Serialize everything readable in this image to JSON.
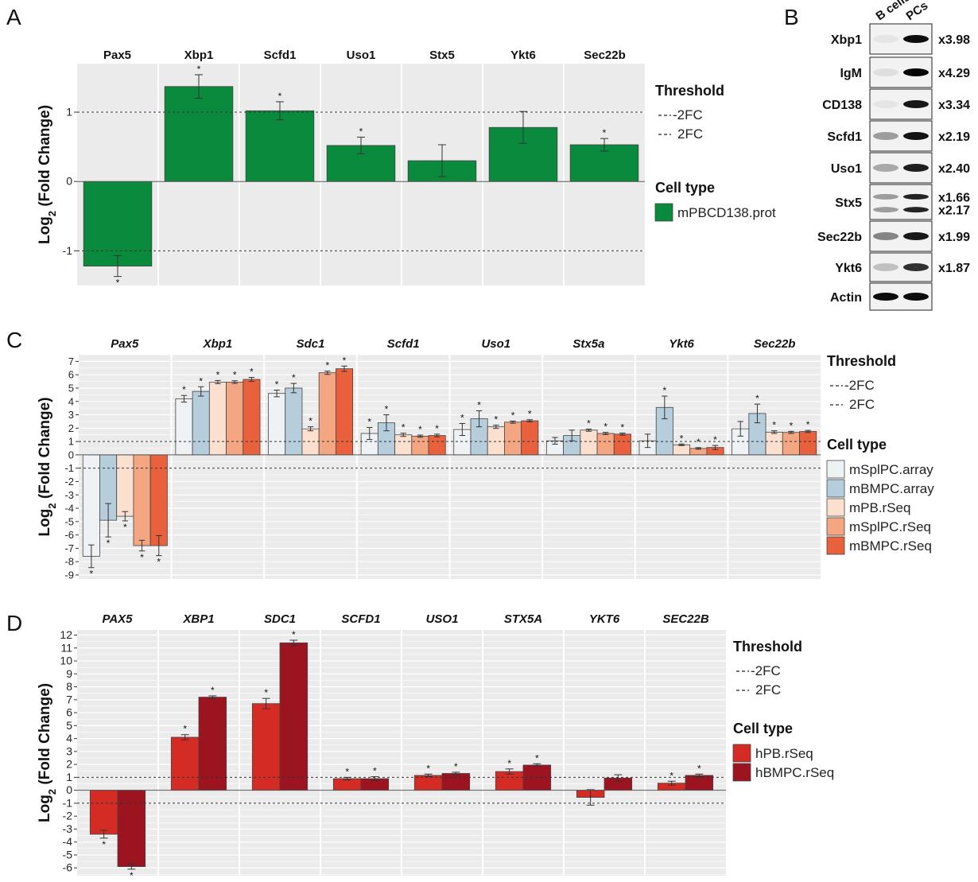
{
  "panels": {
    "a": "A",
    "b": "B",
    "c": "C",
    "d": "D"
  },
  "threshold": {
    "title": "Threshold",
    "lines": [
      "-2FC",
      "2FC"
    ]
  },
  "celltype_title": "Cell type",
  "ylabel_prefix": "Log",
  "ylabel_sub": "2",
  "ylabel_suffix": " (Fold Change)",
  "blot": {
    "columns": [
      "B cells",
      "PCs"
    ],
    "rows": [
      {
        "label": "Xbp1",
        "ratios": [
          "x3.98"
        ]
      },
      {
        "label": "IgM",
        "ratios": [
          "x4.29"
        ]
      },
      {
        "label": "CD138",
        "ratios": [
          "x3.34"
        ]
      },
      {
        "label": "Scfd1",
        "ratios": [
          "x2.19"
        ]
      },
      {
        "label": "Uso1",
        "ratios": [
          "x2.40"
        ]
      },
      {
        "label": "Stx5",
        "ratios": [
          "x1.66",
          "x2.17"
        ]
      },
      {
        "label": "Sec22b",
        "ratios": [
          "x1.99"
        ]
      },
      {
        "label": "Ykt6",
        "ratios": [
          "x1.87"
        ]
      },
      {
        "label": "Actin",
        "ratios": []
      }
    ]
  },
  "colors": {
    "panel_bg": "#ebebeb",
    "grid": "#ffffff",
    "threshold_line": "#333333"
  },
  "chart_data": [
    {
      "id": "A",
      "type": "bar",
      "categories": [
        "Pax5",
        "Xbp1",
        "Scfd1",
        "Uso1",
        "Stx5",
        "Ykt6",
        "Sec22b"
      ],
      "italic": false,
      "ylim": [
        -1.5,
        1.7
      ],
      "yticks": [
        -1,
        0,
        1
      ],
      "minor_grid": false,
      "thresholds": [
        -1,
        1
      ],
      "series": [
        {
          "name": "mPBCD138.prot",
          "color": "#0a8a3c",
          "values": [
            -1.22,
            1.37,
            1.02,
            0.52,
            0.3,
            0.78,
            0.53
          ],
          "errors": [
            0.15,
            0.17,
            0.13,
            0.12,
            0.23,
            0.23,
            0.09
          ],
          "significant": [
            true,
            true,
            true,
            true,
            false,
            false,
            true
          ]
        }
      ]
    },
    {
      "id": "C",
      "type": "bar",
      "categories": [
        "Pax5",
        "Xbp1",
        "Sdc1",
        "Scfd1",
        "Uso1",
        "Stx5a",
        "Ykt6",
        "Sec22b"
      ],
      "italic": true,
      "ylim": [
        -9.3,
        7.5
      ],
      "yticks": [
        -9,
        -8,
        -7,
        -6,
        -5,
        -4,
        -3,
        -2,
        -1,
        0,
        1,
        2,
        3,
        4,
        5,
        6,
        7
      ],
      "minor_grid": true,
      "thresholds": [
        -1,
        1
      ],
      "series": [
        {
          "name": "mSplPC.array",
          "color": "#eef2f4",
          "values": [
            -7.6,
            4.2,
            4.6,
            1.6,
            1.9,
            1.05,
            1.05,
            1.95
          ],
          "errors": [
            0.85,
            0.25,
            0.25,
            0.45,
            0.45,
            0.25,
            0.5,
            0.55
          ],
          "significant": [
            true,
            true,
            true,
            true,
            true,
            false,
            false,
            false
          ]
        },
        {
          "name": "mBMPC.array",
          "color": "#b6cddb",
          "values": [
            -4.9,
            4.75,
            5.0,
            2.4,
            2.7,
            1.45,
            3.55,
            3.1
          ],
          "errors": [
            1.25,
            0.35,
            0.35,
            0.6,
            0.6,
            0.4,
            0.85,
            0.7
          ],
          "significant": [
            true,
            true,
            true,
            true,
            true,
            false,
            true,
            true
          ]
        },
        {
          "name": "mPB.rSeq",
          "color": "#fbe0d0",
          "values": [
            -4.6,
            5.45,
            1.95,
            1.5,
            2.1,
            1.85,
            0.75,
            1.7
          ],
          "errors": [
            0.35,
            0.12,
            0.15,
            0.12,
            0.12,
            0.08,
            0.06,
            0.1
          ],
          "significant": [
            true,
            true,
            true,
            true,
            true,
            true,
            true,
            true
          ]
        },
        {
          "name": "mSplPC.rSeq",
          "color": "#f4a582",
          "values": [
            -6.8,
            5.45,
            6.15,
            1.4,
            2.45,
            1.6,
            0.48,
            1.68
          ],
          "errors": [
            0.4,
            0.1,
            0.12,
            0.08,
            0.08,
            0.08,
            0.06,
            0.08
          ],
          "significant": [
            true,
            true,
            true,
            true,
            true,
            true,
            true,
            true
          ]
        },
        {
          "name": "mBMPC.rSeq",
          "color": "#e8603c",
          "values": [
            -6.8,
            5.65,
            6.45,
            1.45,
            2.55,
            1.55,
            0.55,
            1.75
          ],
          "errors": [
            0.75,
            0.15,
            0.2,
            0.1,
            0.08,
            0.08,
            0.15,
            0.08
          ],
          "significant": [
            true,
            true,
            true,
            true,
            true,
            true,
            true,
            true
          ]
        }
      ]
    },
    {
      "id": "D",
      "type": "bar",
      "categories": [
        "PAX5",
        "XBP1",
        "SDC1",
        "SCFD1",
        "USO1",
        "STX5A",
        "YKT6",
        "SEC22B"
      ],
      "italic": true,
      "ylim": [
        -6.6,
        12.4
      ],
      "yticks": [
        -6,
        -5,
        -4,
        -3,
        -2,
        -1,
        0,
        1,
        2,
        3,
        4,
        5,
        6,
        7,
        8,
        9,
        10,
        11,
        12
      ],
      "minor_grid": true,
      "thresholds": [
        -1,
        1
      ],
      "series": [
        {
          "name": "hPB.rSeq",
          "color": "#d42b24",
          "values": [
            -3.4,
            4.1,
            6.7,
            0.9,
            1.15,
            1.45,
            -0.55,
            0.55
          ],
          "errors": [
            0.3,
            0.2,
            0.4,
            0.1,
            0.1,
            0.2,
            0.6,
            0.15
          ],
          "significant": [
            true,
            true,
            true,
            true,
            true,
            true,
            false,
            true
          ]
        },
        {
          "name": "hBMPC.rSeq",
          "color": "#9b1420",
          "values": [
            -5.9,
            7.2,
            11.4,
            0.9,
            1.3,
            1.95,
            0.95,
            1.15
          ],
          "errors": [
            0.2,
            0.1,
            0.2,
            0.15,
            0.1,
            0.1,
            0.25,
            0.1
          ],
          "significant": [
            true,
            true,
            true,
            true,
            true,
            true,
            false,
            true
          ]
        }
      ]
    }
  ]
}
